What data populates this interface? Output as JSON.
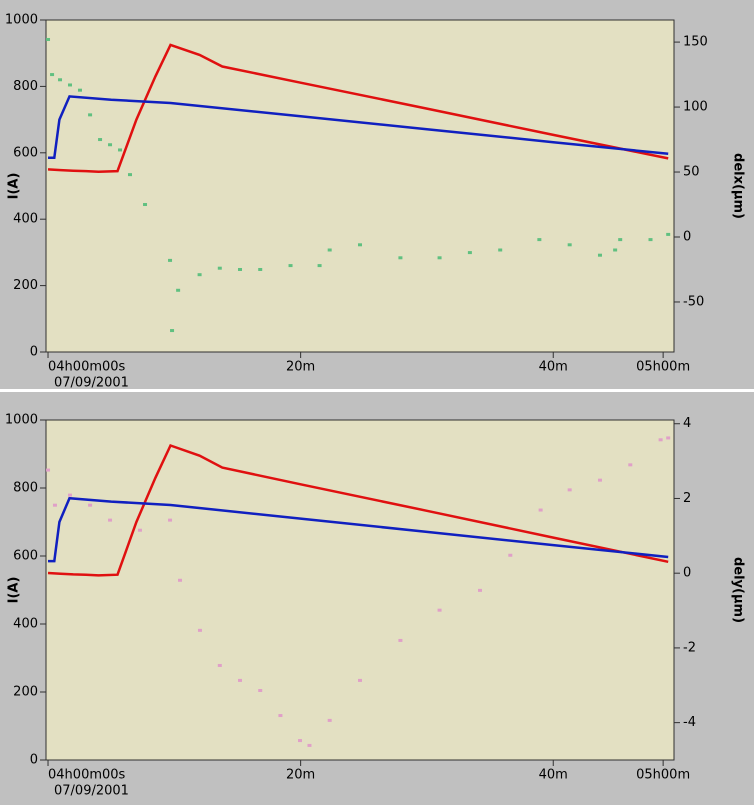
{
  "chart_data": [
    {
      "type": "line",
      "ylabel": "I(A)",
      "y2label": "delx(μm)",
      "date": "07/09/2001",
      "xlim": [
        -0.16,
        49.56
      ],
      "xticks": [
        {
          "value": 0,
          "label": "04h00m00s"
        },
        {
          "value": 20,
          "label": "20m"
        },
        {
          "value": 40,
          "label": "40m"
        },
        {
          "value": 48.7,
          "label": "05h00m"
        }
      ],
      "ylim": [
        0,
        1000
      ],
      "yticks": [
        0,
        200,
        400,
        600,
        800,
        1000
      ],
      "y2lim": [
        -88.5,
        167
      ],
      "y2ticks": [
        -50,
        0,
        50,
        100,
        150
      ],
      "series": [
        {
          "color": "#e01010",
          "mode": "line",
          "x": [
            0,
            1,
            2,
            3,
            4,
            5.5,
            7,
            8.5,
            9.7,
            12,
            13.8,
            20,
            30,
            40,
            49.1
          ],
          "values": [
            550,
            548,
            546,
            545,
            543,
            545,
            700,
            830,
            925,
            895,
            860,
            811,
            733,
            654,
            583
          ]
        },
        {
          "color": "#1020c0",
          "mode": "line",
          "x": [
            0,
            0.5,
            0.9,
            1.7,
            5,
            9.7,
            20,
            30,
            40,
            49.1
          ],
          "values": [
            585,
            585,
            700,
            770,
            760,
            750,
            710,
            671,
            632,
            597
          ]
        },
        {
          "color": "#60c080",
          "mode": "dots",
          "axis": "y2",
          "x": [
            0,
            0.32,
            0.95,
            1.74,
            2.53,
            3.33,
            4.12,
            4.91,
            5.7,
            6.49,
            7.68,
            9.66,
            9.82,
            10.3,
            12.0,
            13.6,
            15.2,
            16.8,
            19.2,
            21.5,
            22.3,
            24.7,
            27.9,
            31.0,
            33.4,
            35.8,
            38.9,
            41.3,
            43.7,
            44.9,
            45.3,
            47.7,
            49.1
          ],
          "values": [
            152,
            125,
            121,
            117,
            113,
            94,
            75,
            71,
            67,
            48,
            25,
            -18,
            -72,
            -41,
            -29,
            -24,
            -25,
            -25,
            -22,
            -22,
            -10,
            -6,
            -16,
            -16,
            -12,
            -10,
            -2,
            -6,
            -14,
            -10,
            -2,
            -2,
            2
          ]
        }
      ]
    },
    {
      "type": "line",
      "ylabel": "I(A)",
      "y2label": "dely(μm)",
      "date": "07/09/2001",
      "xlim": [
        -0.16,
        49.56
      ],
      "xticks": [
        {
          "value": 0,
          "label": "04h00m00s"
        },
        {
          "value": 20,
          "label": "20m"
        },
        {
          "value": 40,
          "label": "40m"
        },
        {
          "value": 48.7,
          "label": "05h00m"
        }
      ],
      "ylim": [
        0,
        1000
      ],
      "yticks": [
        0,
        200,
        400,
        600,
        800,
        1000
      ],
      "y2lim": [
        -5.0,
        4.1
      ],
      "y2ticks": [
        -4,
        -2,
        0,
        2,
        4
      ],
      "series": [
        {
          "color": "#e01010",
          "mode": "line",
          "x": [
            0,
            1,
            2,
            3,
            4,
            5.5,
            7,
            8.5,
            9.7,
            12,
            13.8,
            20,
            30,
            40,
            49.1
          ],
          "values": [
            550,
            548,
            546,
            545,
            543,
            545,
            700,
            830,
            925,
            895,
            860,
            811,
            733,
            654,
            583
          ]
        },
        {
          "color": "#1020c0",
          "mode": "line",
          "x": [
            0,
            0.5,
            0.9,
            1.7,
            5,
            9.7,
            20,
            30,
            40,
            49.1
          ],
          "values": [
            585,
            585,
            700,
            770,
            760,
            750,
            710,
            671,
            632,
            597
          ]
        },
        {
          "color": "#e0a0c8",
          "mode": "dots",
          "axis": "y2",
          "x": [
            0,
            0.55,
            1.74,
            3.33,
            4.91,
            7.28,
            9.66,
            10.45,
            12.03,
            13.6,
            15.2,
            16.8,
            18.4,
            19.95,
            20.7,
            22.3,
            24.7,
            27.9,
            31.0,
            34.2,
            36.6,
            39.0,
            41.3,
            43.7,
            46.1,
            48.5,
            49.1
          ],
          "values": [
            2.76,
            1.82,
            2.09,
            1.82,
            1.42,
            1.15,
            1.42,
            -0.19,
            -1.53,
            -2.47,
            -2.87,
            -3.14,
            -3.81,
            -4.48,
            -4.61,
            -3.94,
            -2.87,
            -1.8,
            -0.99,
            -0.46,
            0.48,
            1.69,
            2.23,
            2.49,
            2.9,
            3.57,
            3.62
          ]
        }
      ]
    }
  ]
}
